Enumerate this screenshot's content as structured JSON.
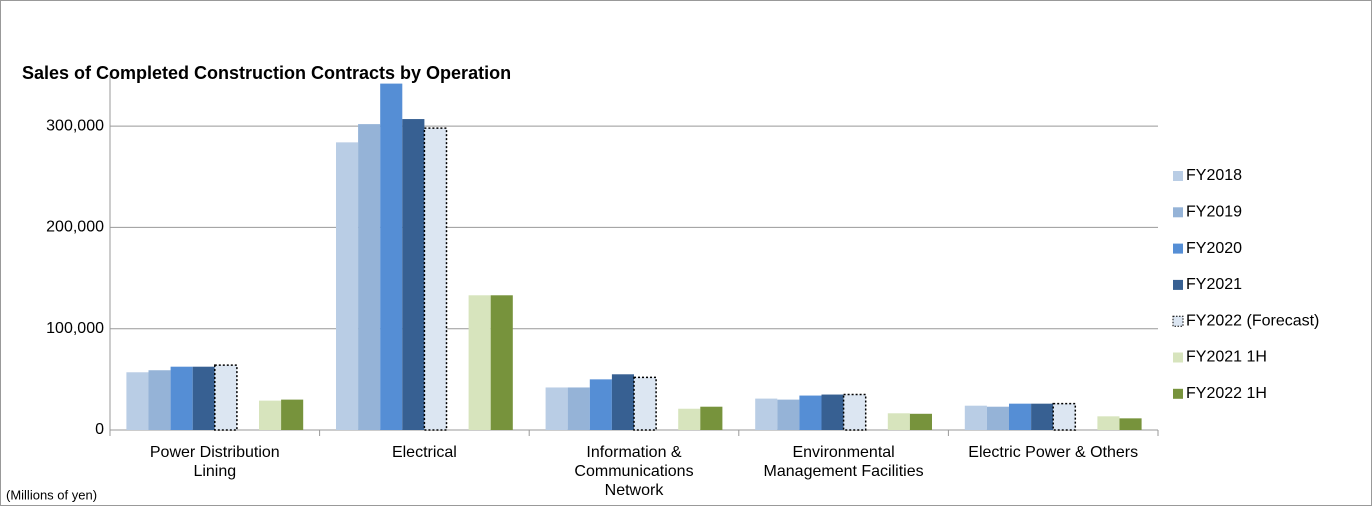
{
  "chart_data": {
    "type": "bar",
    "title": "Sales of Completed Construction Contracts by Operation",
    "note": "(Millions of yen)",
    "categories": [
      "Power Distribution Lining",
      "Electrical",
      "Information & Communications Network",
      "Environmental Management Facilities",
      "Electric Power & Others"
    ],
    "series": [
      {
        "name": "FY2018",
        "color": "#b9cde5",
        "values": [
          57000,
          284000,
          42000,
          31000,
          24000
        ]
      },
      {
        "name": "FY2019",
        "color": "#95b3d7",
        "values": [
          59000,
          302000,
          42000,
          30000,
          23000
        ]
      },
      {
        "name": "FY2020",
        "color": "#558ed5",
        "values": [
          62500,
          342000,
          50000,
          34000,
          26000
        ]
      },
      {
        "name": "FY2021",
        "color": "#376092",
        "values": [
          62500,
          307000,
          55000,
          35000,
          26000
        ]
      },
      {
        "name": "FY2022 (Forecast)",
        "color": "#dce6f2",
        "dashed": true,
        "values": [
          64000,
          298000,
          52000,
          35000,
          26000
        ]
      },
      {
        "name": "FY2021 1H",
        "color": "#d7e4bd",
        "values": [
          29000,
          133000,
          21000,
          16500,
          13500
        ]
      },
      {
        "name": "FY2022 1H",
        "color": "#77933c",
        "values": [
          30000,
          133000,
          23000,
          16000,
          11500
        ]
      }
    ],
    "ylim": [
      0,
      350000
    ],
    "yticks": [
      0,
      {
        "value": 100000,
        "label": "100,000"
      },
      {
        "value": 200000,
        "label": "200,000"
      },
      {
        "value": 300000,
        "label": "300,000"
      }
    ],
    "grid": true,
    "legend": "right"
  }
}
